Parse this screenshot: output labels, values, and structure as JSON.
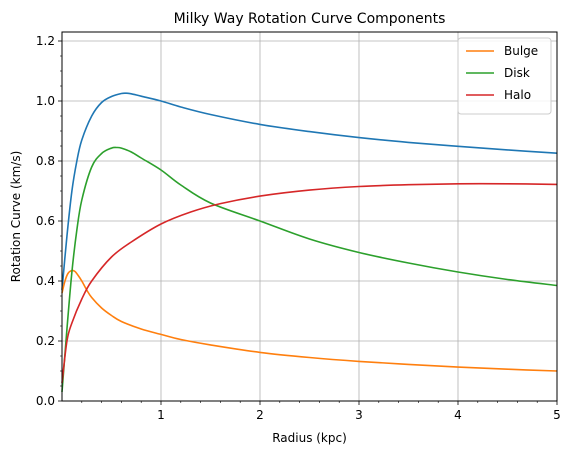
{
  "chart_data": {
    "type": "line",
    "title": "Milky Way Rotation Curve Components",
    "xlabel": "Radius (kpc)",
    "ylabel": "Rotation Curve (km/s)",
    "xlim": [
      0,
      5
    ],
    "ylim": [
      0,
      1.23
    ],
    "xticks": [
      1,
      2,
      3,
      4,
      5
    ],
    "yticks": [
      0.0,
      0.2,
      0.4,
      0.6,
      0.8,
      1.0,
      1.2
    ],
    "grid": true,
    "legend": {
      "placement": "top-right",
      "entries": [
        "Bulge",
        "Disk",
        "Halo"
      ]
    },
    "series": [
      {
        "color": "#1f77b4",
        "x": [
          0.0,
          0.05,
          0.1,
          0.15,
          0.2,
          0.3,
          0.4,
          0.5,
          0.6,
          0.65,
          0.7,
          0.8,
          1.0,
          1.2,
          1.5,
          2.0,
          2.5,
          3.0,
          3.5,
          4.0,
          4.5,
          5.0
        ],
        "y": [
          0.37,
          0.55,
          0.7,
          0.8,
          0.87,
          0.95,
          0.995,
          1.015,
          1.025,
          1.026,
          1.024,
          1.016,
          1.0,
          0.98,
          0.955,
          0.922,
          0.898,
          0.878,
          0.862,
          0.849,
          0.837,
          0.826
        ]
      },
      {
        "name": "Bulge",
        "color": "#ff7f0e",
        "x": [
          0.0,
          0.03,
          0.06,
          0.1,
          0.13,
          0.16,
          0.2,
          0.25,
          0.3,
          0.4,
          0.5,
          0.6,
          0.8,
          1.0,
          1.2,
          1.5,
          2.0,
          2.5,
          3.0,
          3.5,
          4.0,
          4.5,
          5.0
        ],
        "y": [
          0.36,
          0.4,
          0.425,
          0.435,
          0.432,
          0.42,
          0.4,
          0.37,
          0.345,
          0.31,
          0.285,
          0.265,
          0.24,
          0.222,
          0.205,
          0.187,
          0.162,
          0.145,
          0.132,
          0.122,
          0.113,
          0.106,
          0.1
        ]
      },
      {
        "name": "Disk",
        "color": "#2ca02c",
        "x": [
          0.0,
          0.05,
          0.1,
          0.15,
          0.2,
          0.3,
          0.4,
          0.5,
          0.55,
          0.6,
          0.7,
          0.8,
          1.0,
          1.2,
          1.5,
          2.0,
          2.5,
          3.0,
          3.5,
          4.0,
          4.5,
          5.0
        ],
        "y": [
          0.03,
          0.24,
          0.43,
          0.57,
          0.67,
          0.78,
          0.825,
          0.843,
          0.845,
          0.843,
          0.83,
          0.81,
          0.77,
          0.72,
          0.66,
          0.6,
          0.54,
          0.495,
          0.46,
          0.43,
          0.405,
          0.385
        ]
      },
      {
        "name": "Halo",
        "color": "#d62728",
        "x": [
          0.0,
          0.05,
          0.1,
          0.2,
          0.3,
          0.5,
          0.7,
          1.0,
          1.3,
          1.6,
          2.0,
          2.5,
          3.0,
          3.5,
          4.0,
          4.5,
          5.0
        ],
        "y": [
          0.06,
          0.2,
          0.26,
          0.34,
          0.4,
          0.48,
          0.53,
          0.59,
          0.63,
          0.658,
          0.683,
          0.703,
          0.715,
          0.721,
          0.724,
          0.724,
          0.722
        ]
      }
    ]
  }
}
